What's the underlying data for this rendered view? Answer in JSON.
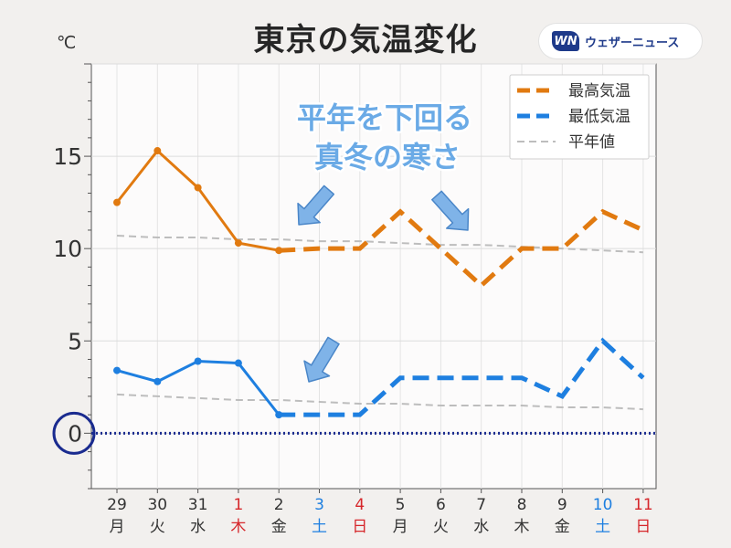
{
  "title": "東京の気温変化",
  "unit": "℃",
  "logo": {
    "mark": "WN",
    "text": "ウェザーニュース"
  },
  "annotation": {
    "line1": "平年を下回る",
    "line2": "真冬の寒さ"
  },
  "colors": {
    "max": "#e17a10",
    "min": "#1e7fe0",
    "normal": "#bdbdbd",
    "zero": "#1a2b8f",
    "weekday": "#333333",
    "saturday": "#1e7fe0",
    "sunday": "#d6272b",
    "annotation_fill": "#7fb3e8",
    "annotation_text": "#6aaae6"
  },
  "chart_data": {
    "type": "line",
    "x_labels": [
      {
        "day": "29",
        "weekday": "月",
        "kind": "weekday"
      },
      {
        "day": "30",
        "weekday": "火",
        "kind": "weekday"
      },
      {
        "day": "31",
        "weekday": "水",
        "kind": "weekday"
      },
      {
        "day": "1",
        "weekday": "木",
        "kind": "sunday"
      },
      {
        "day": "2",
        "weekday": "金",
        "kind": "weekday"
      },
      {
        "day": "3",
        "weekday": "土",
        "kind": "saturday"
      },
      {
        "day": "4",
        "weekday": "日",
        "kind": "sunday"
      },
      {
        "day": "5",
        "weekday": "月",
        "kind": "weekday"
      },
      {
        "day": "6",
        "weekday": "火",
        "kind": "weekday"
      },
      {
        "day": "7",
        "weekday": "水",
        "kind": "weekday"
      },
      {
        "day": "8",
        "weekday": "木",
        "kind": "weekday"
      },
      {
        "day": "9",
        "weekday": "金",
        "kind": "weekday"
      },
      {
        "day": "10",
        "weekday": "土",
        "kind": "saturday"
      },
      {
        "day": "11",
        "weekday": "日",
        "kind": "sunday"
      }
    ],
    "ylim": [
      -3,
      20
    ],
    "yticks": [
      0,
      5,
      10,
      15
    ],
    "grid": true,
    "legend_position": "top-right",
    "series": [
      {
        "name": "最高気温",
        "key": "max",
        "observed": [
          12.5,
          15.3,
          13.3,
          10.3,
          9.9
        ],
        "forecast": [
          9.9,
          10.0,
          10.0,
          12.0,
          10.0,
          8.0,
          10.0,
          10.0,
          12.0,
          11.0
        ]
      },
      {
        "name": "最低気温",
        "key": "min",
        "observed": [
          3.4,
          2.8,
          3.9,
          3.8,
          1.0
        ],
        "forecast": [
          1.0,
          1.0,
          1.0,
          3.0,
          3.0,
          3.0,
          3.0,
          2.0,
          5.0,
          3.0
        ]
      },
      {
        "name": "平年値",
        "key": "normal_max",
        "values": [
          10.7,
          10.6,
          10.6,
          10.5,
          10.5,
          10.4,
          10.4,
          10.3,
          10.2,
          10.2,
          10.1,
          10.0,
          9.9,
          9.8
        ]
      },
      {
        "name": "",
        "key": "normal_min",
        "values": [
          2.1,
          2.0,
          1.9,
          1.8,
          1.8,
          1.7,
          1.6,
          1.6,
          1.5,
          1.5,
          1.5,
          1.4,
          1.4,
          1.3
        ]
      }
    ]
  }
}
